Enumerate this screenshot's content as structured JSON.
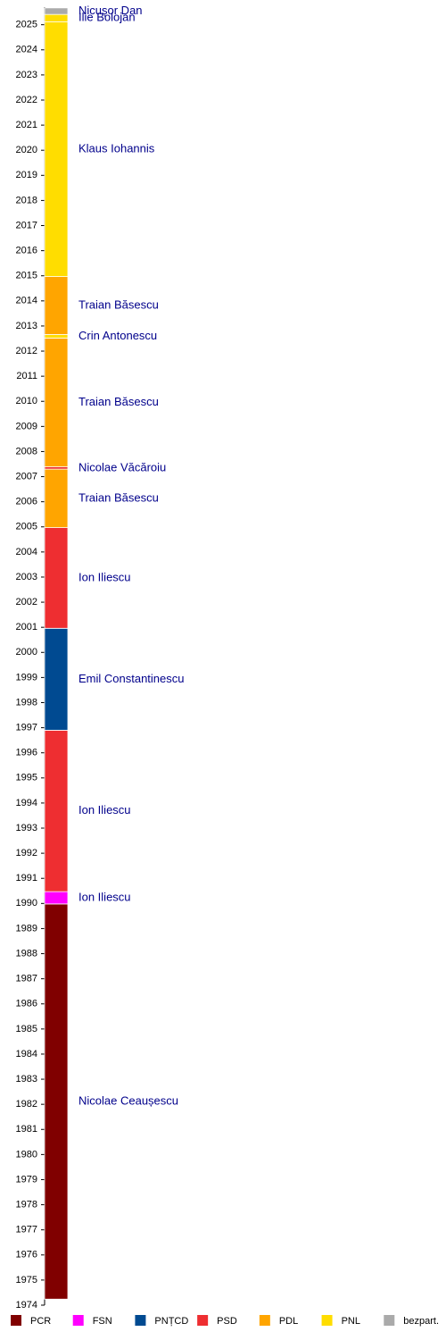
{
  "chart_data": {
    "type": "timeline",
    "ylim": [
      1974,
      2025.7
    ],
    "yticks": [
      1974,
      1975,
      1976,
      1977,
      1978,
      1979,
      1980,
      1981,
      1982,
      1983,
      1984,
      1985,
      1986,
      1987,
      1988,
      1989,
      1990,
      1991,
      1992,
      1993,
      1994,
      1995,
      1996,
      1997,
      1998,
      1999,
      2000,
      2001,
      2002,
      2003,
      2004,
      2005,
      2006,
      2007,
      2008,
      2009,
      2010,
      2011,
      2012,
      2013,
      2014,
      2015,
      2016,
      2017,
      2018,
      2019,
      2020,
      2021,
      2022,
      2023,
      2024,
      2025
    ],
    "parties": [
      {
        "name": "PCR",
        "color": "#800000"
      },
      {
        "name": "FSN",
        "color": "#ff00ff"
      },
      {
        "name": "PNȚCD",
        "color": "#004a91"
      },
      {
        "name": "PSD",
        "color": "#ee2e31"
      },
      {
        "name": "PDL",
        "color": "#ffa500"
      },
      {
        "name": "PNL",
        "color": "#ffdd00"
      },
      {
        "name": "bezpart.",
        "color": "#aaaaaa"
      }
    ],
    "segments": [
      {
        "name": "Nicolae Ceaușescu",
        "party": "PCR",
        "start": 1974.24,
        "end": 1989.98
      },
      {
        "name": "Ion Iliescu",
        "party": "FSN",
        "start": 1989.98,
        "end": 1990.47
      },
      {
        "name": "Ion Iliescu",
        "party": "PSD",
        "start": 1990.47,
        "end": 1996.9
      },
      {
        "name": "Emil Constantinescu",
        "party": "PNȚCD",
        "start": 1996.9,
        "end": 2000.96
      },
      {
        "name": "Ion Iliescu",
        "party": "PSD",
        "start": 2000.96,
        "end": 2004.97
      },
      {
        "name": "Traian Băsescu",
        "party": "PDL",
        "start": 2004.97,
        "end": 2007.3
      },
      {
        "name": "Nicolae Văcăroiu",
        "party": "PSD",
        "start": 2007.3,
        "end": 2007.39
      },
      {
        "name": "Traian Băsescu",
        "party": "PDL",
        "start": 2007.39,
        "end": 2012.52
      },
      {
        "name": "Crin Antonescu",
        "party": "PNL",
        "start": 2012.52,
        "end": 2012.66
      },
      {
        "name": "Traian Băsescu",
        "party": "PDL",
        "start": 2012.66,
        "end": 2014.97
      },
      {
        "name": "Klaus Iohannis",
        "party": "PNL",
        "start": 2014.97,
        "end": 2025.12
      },
      {
        "name": "Ilie Bolojan",
        "party": "PNL",
        "start": 2025.12,
        "end": 2025.41
      },
      {
        "name": "Nicușor Dan",
        "party": "bezpart.",
        "start": 2025.41,
        "end": 2025.67
      }
    ]
  }
}
